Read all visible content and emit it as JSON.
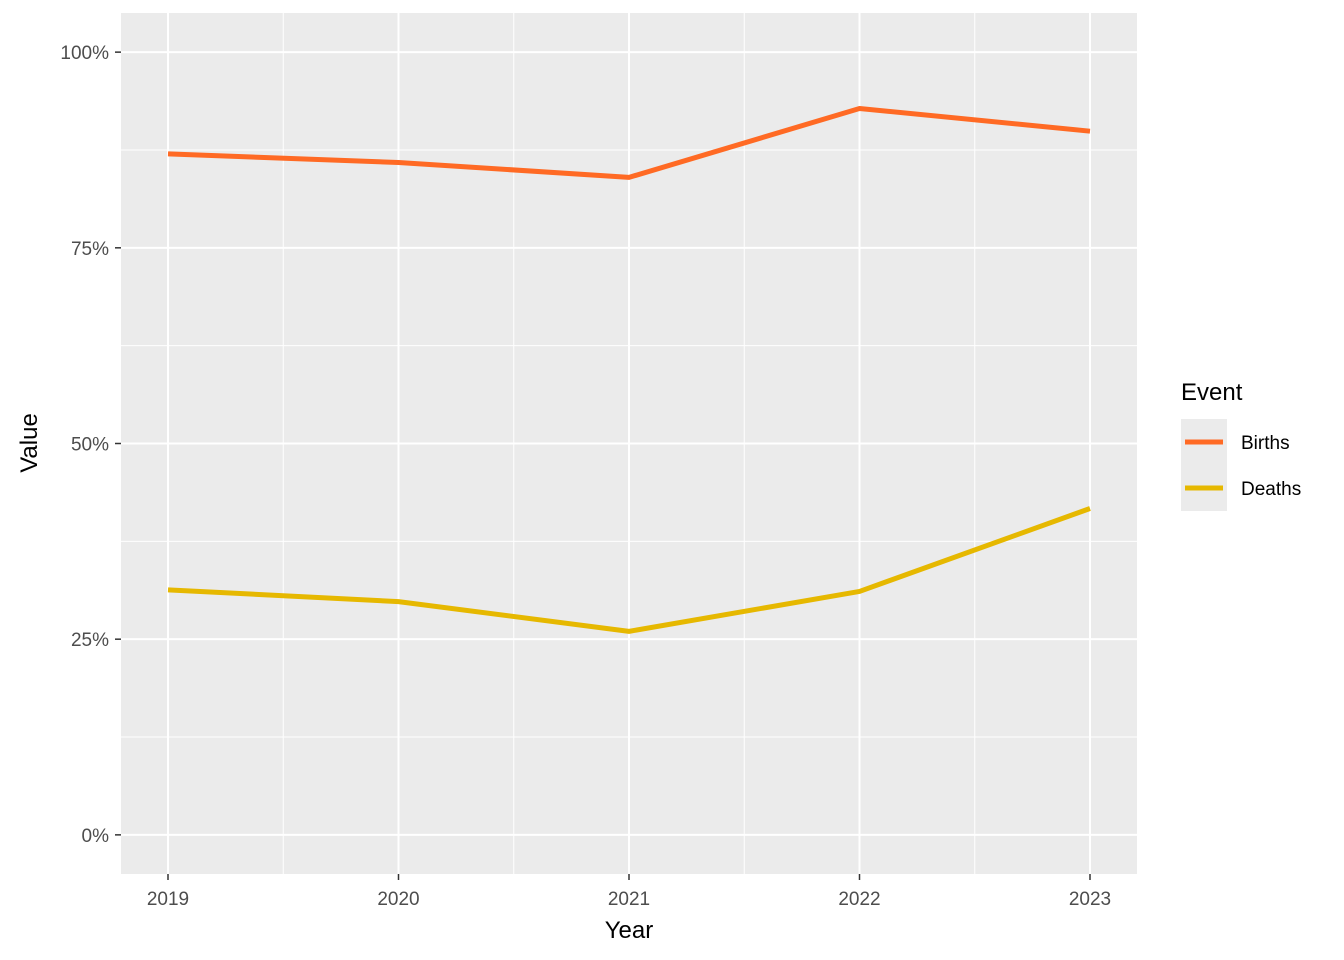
{
  "chart_data": {
    "type": "line",
    "x": [
      "2019",
      "2020",
      "2021",
      "2022",
      "2023"
    ],
    "xlabel": "Year",
    "ylabel": "Value",
    "ylim": [
      -0.05,
      1.05
    ],
    "y_ticks": [
      {
        "value": 0.0,
        "label": "0%"
      },
      {
        "value": 0.25,
        "label": "25%"
      },
      {
        "value": 0.5,
        "label": "50%"
      },
      {
        "value": 0.75,
        "label": "75%"
      },
      {
        "value": 1.0,
        "label": "100%"
      }
    ],
    "y_minor_ticks": [
      0.125,
      0.375,
      0.625,
      0.875
    ],
    "grid": true,
    "background": "#ebebeb",
    "legend": {
      "title": "Event",
      "placement": "right"
    },
    "series": [
      {
        "name": "Births",
        "color": "#ff6a24",
        "values": [
          0.87,
          0.859,
          0.84,
          0.928,
          0.899
        ]
      },
      {
        "name": "Deaths",
        "color": "#e6b800",
        "values": [
          0.313,
          0.298,
          0.26,
          0.311,
          0.417
        ]
      }
    ]
  }
}
